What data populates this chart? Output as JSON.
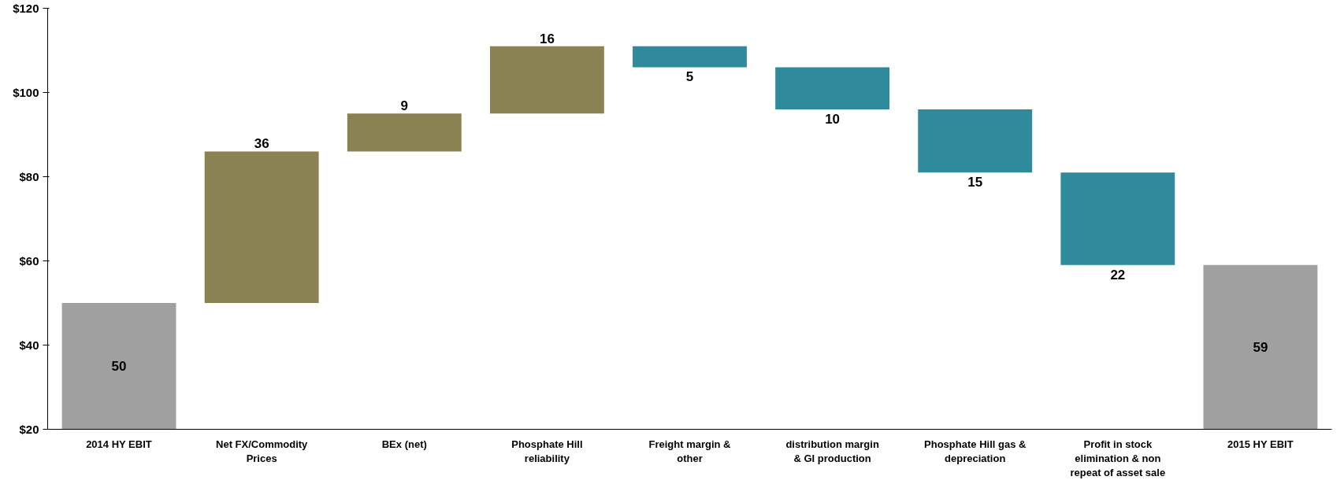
{
  "chart_data": {
    "type": "bar",
    "categories": [
      "2014 HY EBIT",
      "Net FX/Commodity Prices",
      "BEx (net)",
      "Phosphate Hill reliability",
      "Freight margin & other",
      "distribution margin & GI production",
      "Phosphate Hill gas & depreciation",
      "Profit in stock elimination & non repeat of asset sale",
      "2015 HY EBIT"
    ],
    "values": [
      50,
      36,
      9,
      16,
      -5,
      -10,
      -15,
      -22,
      59
    ],
    "base": [
      0,
      50,
      86,
      95,
      111,
      106,
      96,
      81,
      0
    ],
    "value_labels": [
      "50",
      "36",
      "9",
      "16",
      "5",
      "10",
      "15",
      "22",
      "59"
    ],
    "colors": [
      "#a0a0a0",
      "#8a8252",
      "#8a8252",
      "#8a8252",
      "#2f8b9c",
      "#2f8b9c",
      "#2f8b9c",
      "#2f8b9c",
      "#a0a0a0"
    ],
    "ylim": [
      20,
      120
    ],
    "yticks": [
      {
        "value": 20,
        "label": "$20"
      },
      {
        "value": 40,
        "label": "$40"
      },
      {
        "value": 60,
        "label": "$60"
      },
      {
        "value": 80,
        "label": "$80"
      },
      {
        "value": 100,
        "label": "$100"
      },
      {
        "value": 120,
        "label": "$120"
      }
    ],
    "grid": false
  }
}
